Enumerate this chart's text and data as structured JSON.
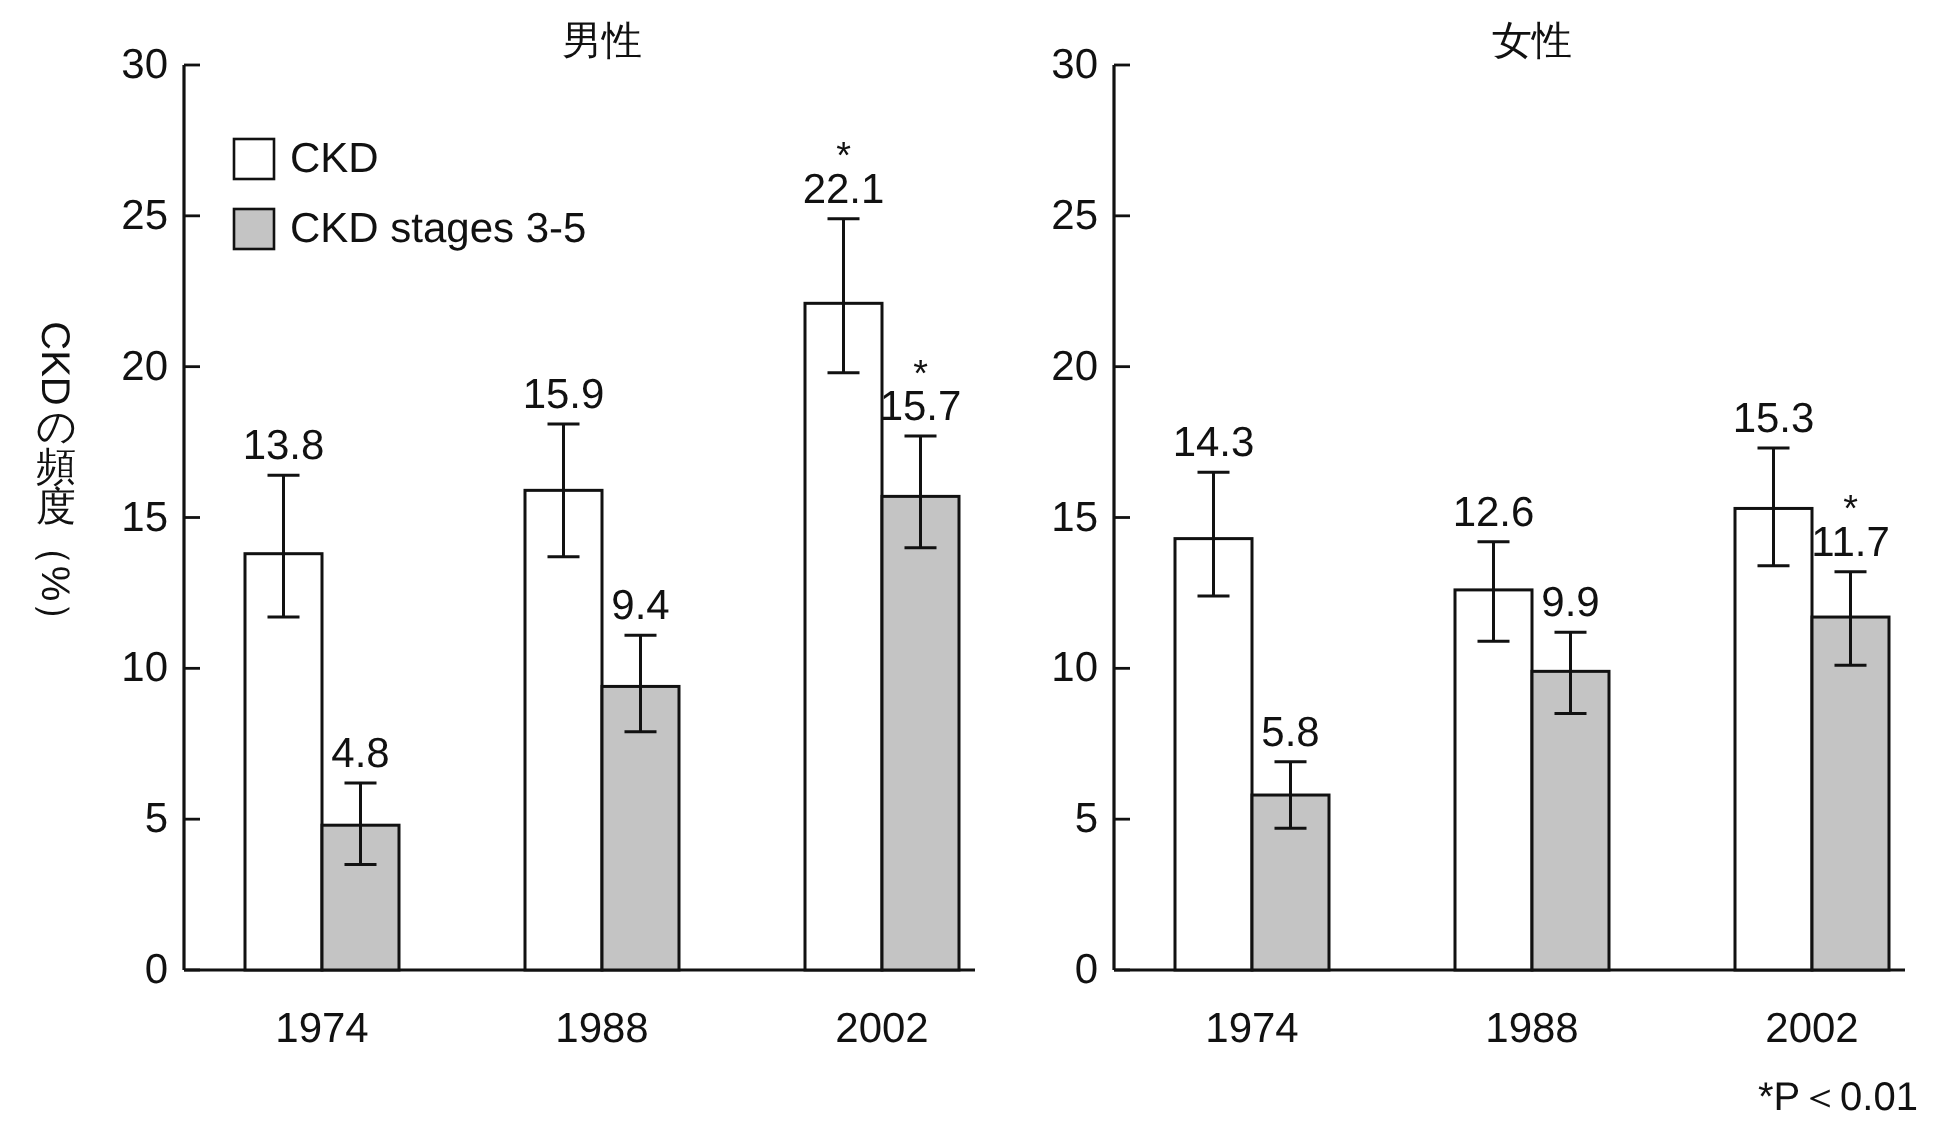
{
  "chart_data": [
    {
      "type": "bar",
      "title": "男性",
      "ylabel": "CKDの頻度（%）",
      "categories": [
        "1974",
        "1988",
        "2002"
      ],
      "series": [
        {
          "name": "CKD",
          "color": "#ffffff",
          "values": [
            13.8,
            15.9,
            22.1
          ],
          "value_labels": [
            "13.8",
            "15.9",
            "*\n22.1"
          ],
          "errors": [
            [
              11.7,
              16.4
            ],
            [
              13.7,
              18.1
            ],
            [
              19.8,
              24.9
            ]
          ]
        },
        {
          "name": "CKD stages 3-5",
          "color": "#c4c4c4",
          "values": [
            4.8,
            9.4,
            15.7
          ],
          "value_labels": [
            "4.8",
            "9.4",
            "*\n15.7"
          ],
          "errors": [
            [
              3.5,
              6.2
            ],
            [
              7.9,
              11.1
            ],
            [
              14.0,
              17.7
            ]
          ]
        }
      ],
      "ylim": [
        0,
        30
      ],
      "yticks": [
        0,
        5,
        10,
        15,
        20,
        25,
        30
      ],
      "legend": "top left"
    },
    {
      "type": "bar",
      "title": "女性",
      "categories": [
        "1974",
        "1988",
        "2002"
      ],
      "series": [
        {
          "color": "#ffffff",
          "values": [
            14.3,
            12.6,
            15.3
          ],
          "value_labels": [
            "14.3",
            "12.6",
            "15.3"
          ],
          "errors": [
            [
              12.4,
              16.5
            ],
            [
              10.9,
              14.2
            ],
            [
              13.4,
              17.3
            ]
          ]
        },
        {
          "color": "#c4c4c4",
          "values": [
            5.8,
            9.9,
            11.7
          ],
          "value_labels": [
            "5.8",
            "9.9",
            "*\n11.7"
          ],
          "errors": [
            [
              4.7,
              6.9
            ],
            [
              8.5,
              11.2
            ],
            [
              10.1,
              13.2
            ]
          ]
        }
      ],
      "ylim": [
        0,
        30
      ],
      "yticks": [
        0,
        5,
        10,
        15,
        20,
        25,
        30
      ],
      "annotations": [
        "*P＜0.01"
      ]
    }
  ]
}
